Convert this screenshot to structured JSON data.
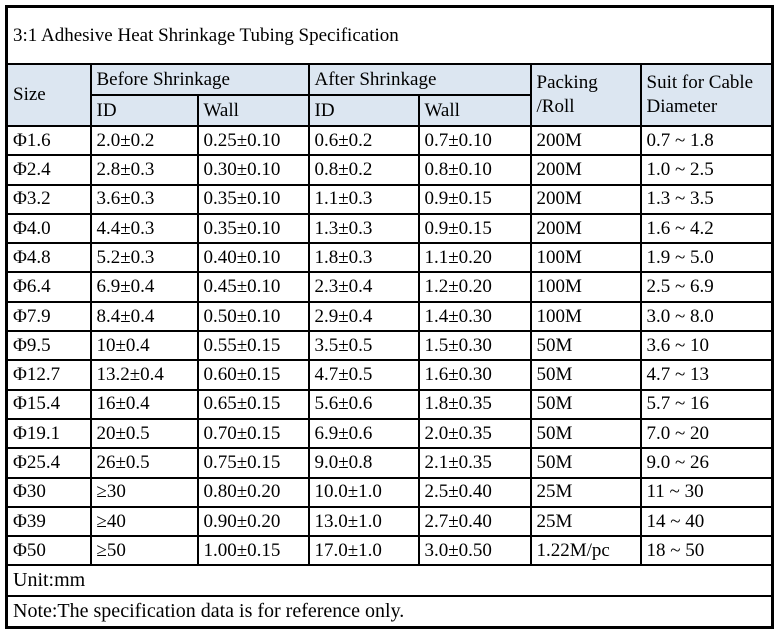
{
  "title": "3:1 Adhesive Heat Shrinkage Tubing Specification",
  "colors": {
    "header_bg": "#dce6f1",
    "border": "#000000",
    "text": "#000000",
    "background": "#ffffff"
  },
  "header": {
    "size": "Size",
    "before": "Before Shrinkage",
    "after": "After Shrinkage",
    "id": "ID",
    "wall": "Wall",
    "packing_line1": "Packing",
    "packing_line2": "/Roll",
    "suit_line1": "Suit for Cable",
    "suit_line2": "Diameter"
  },
  "rows": [
    {
      "size": "Φ1.6",
      "before_id": "2.0±0.2",
      "before_wall": "0.25±0.10",
      "after_id": "0.6±0.2",
      "after_wall": "0.7±0.10",
      "packing": "200M",
      "cable": "0.7 ~ 1.8"
    },
    {
      "size": "Φ2.4",
      "before_id": "2.8±0.3",
      "before_wall": "0.30±0.10",
      "after_id": "0.8±0.2",
      "after_wall": "0.8±0.10",
      "packing": "200M",
      "cable": "1.0 ~ 2.5"
    },
    {
      "size": "Φ3.2",
      "before_id": "3.6±0.3",
      "before_wall": "0.35±0.10",
      "after_id": "1.1±0.3",
      "after_wall": "0.9±0.15",
      "packing": "200M",
      "cable": "1.3 ~ 3.5"
    },
    {
      "size": "Φ4.0",
      "before_id": "4.4±0.3",
      "before_wall": "0.35±0.10",
      "after_id": "1.3±0.3",
      "after_wall": "0.9±0.15",
      "packing": "200M",
      "cable": "1.6 ~ 4.2"
    },
    {
      "size": "Φ4.8",
      "before_id": "5.2±0.3",
      "before_wall": "0.40±0.10",
      "after_id": "1.8±0.3",
      "after_wall": "1.1±0.20",
      "packing": "100M",
      "cable": "1.9 ~ 5.0"
    },
    {
      "size": "Φ6.4",
      "before_id": "6.9±0.4",
      "before_wall": "0.45±0.10",
      "after_id": "2.3±0.4",
      "after_wall": "1.2±0.20",
      "packing": "100M",
      "cable": "2.5 ~ 6.9"
    },
    {
      "size": "Φ7.9",
      "before_id": "8.4±0.4",
      "before_wall": "0.50±0.10",
      "after_id": "2.9±0.4",
      "after_wall": "1.4±0.30",
      "packing": "100M",
      "cable": "3.0 ~ 8.0"
    },
    {
      "size": "Φ9.5",
      "before_id": "10±0.4",
      "before_wall": "0.55±0.15",
      "after_id": "3.5±0.5",
      "after_wall": "1.5±0.30",
      "packing": "50M",
      "cable": "3.6 ~ 10"
    },
    {
      "size": "Φ12.7",
      "before_id": "13.2±0.4",
      "before_wall": "0.60±0.15",
      "after_id": "4.7±0.5",
      "after_wall": "1.6±0.30",
      "packing": "50M",
      "cable": "4.7 ~ 13"
    },
    {
      "size": "Φ15.4",
      "before_id": "16±0.4",
      "before_wall": "0.65±0.15",
      "after_id": "5.6±0.6",
      "after_wall": "1.8±0.35",
      "packing": "50M",
      "cable": "5.7 ~ 16"
    },
    {
      "size": "Φ19.1",
      "before_id": "20±0.5",
      "before_wall": "0.70±0.15",
      "after_id": "6.9±0.6",
      "after_wall": "2.0±0.35",
      "packing": "50M",
      "cable": "7.0 ~ 20"
    },
    {
      "size": "Φ25.4",
      "before_id": "26±0.5",
      "before_wall": "0.75±0.15",
      "after_id": "9.0±0.8",
      "after_wall": "2.1±0.35",
      "packing": "50M",
      "cable": "9.0 ~ 26"
    },
    {
      "size": "Φ30",
      "before_id": "≥30",
      "before_wall": "0.80±0.20",
      "after_id": "10.0±1.0",
      "after_wall": "2.5±0.40",
      "packing": "25M",
      "cable": "11 ~ 30"
    },
    {
      "size": "Φ39",
      "before_id": "≥40",
      "before_wall": "0.90±0.20",
      "after_id": "13.0±1.0",
      "after_wall": "2.7±0.40",
      "packing": "25M",
      "cable": "14 ~ 40"
    },
    {
      "size": "Φ50",
      "before_id": "≥50",
      "before_wall": "1.00±0.15",
      "after_id": "17.0±1.0",
      "after_wall": "3.0±0.50",
      "packing": "1.22M/pc",
      "cable": "18 ~ 50"
    }
  ],
  "footer": {
    "unit": "Unit:mm",
    "note": "Note:The specification data is for reference only."
  }
}
